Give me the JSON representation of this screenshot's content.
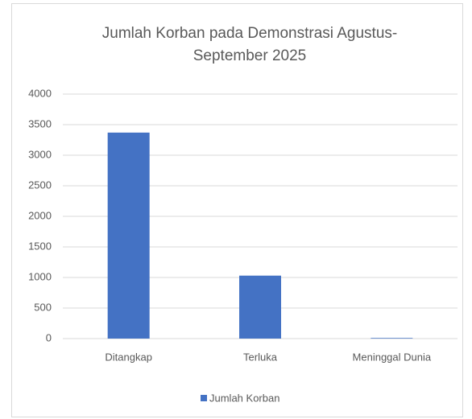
{
  "chart_data": {
    "type": "bar",
    "title": "Jumlah Korban pada Demonstrasi Agustus-September 2025",
    "categories": [
      "Ditangkap",
      "Terluka",
      "Meninggal Dunia"
    ],
    "series": [
      {
        "name": "Jumlah Korban",
        "color": "#4472c4",
        "values": [
          3370,
          1030,
          10
        ]
      }
    ],
    "ylim": [
      0,
      4000
    ],
    "yticks": [
      0,
      500,
      1000,
      1500,
      2000,
      2500,
      3000,
      3500,
      4000
    ],
    "grid": true,
    "legend": "bottom"
  }
}
